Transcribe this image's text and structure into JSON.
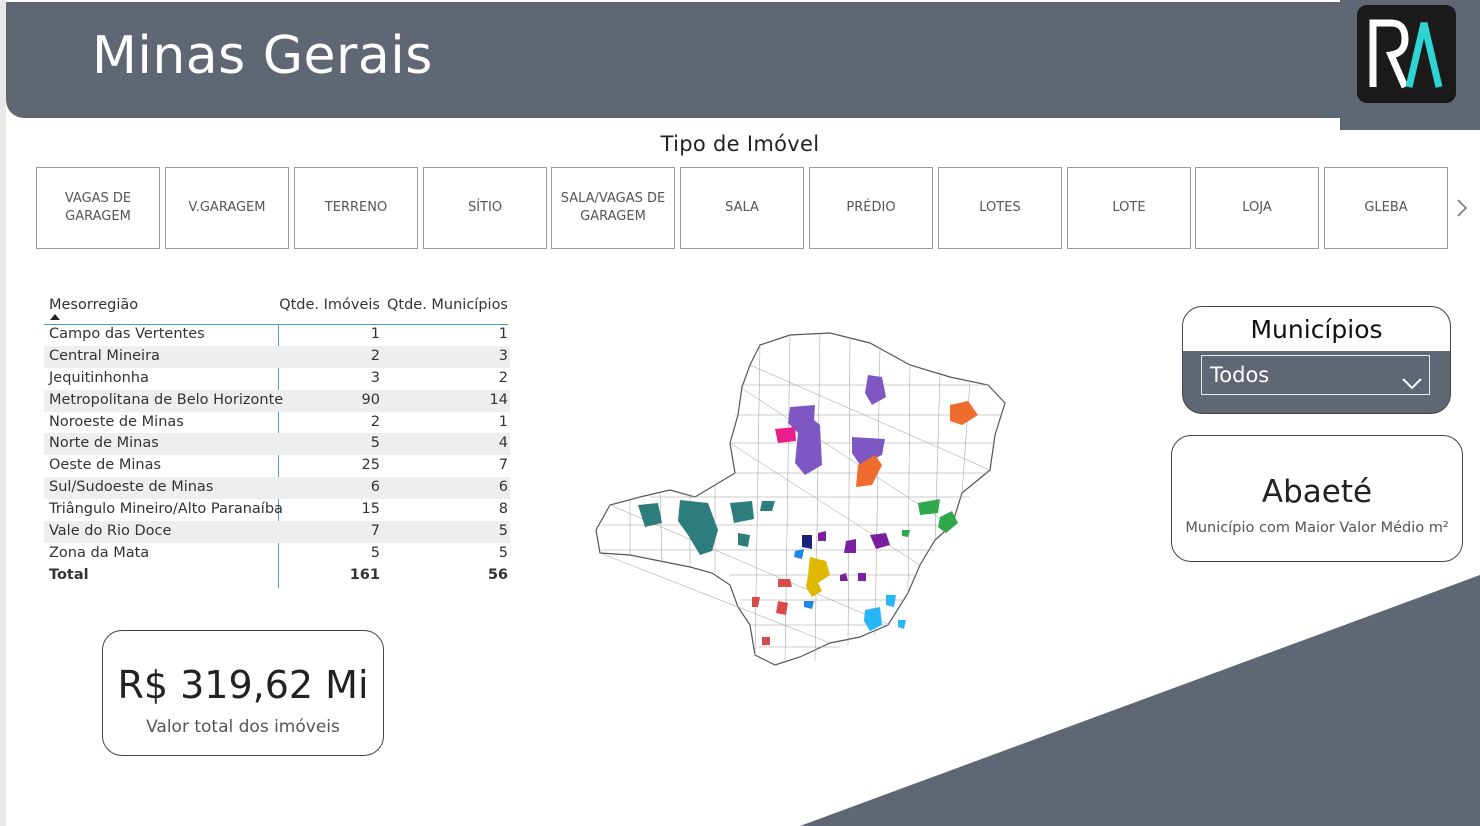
{
  "header": {
    "title": "Minas Gerais",
    "logo_text": "RA"
  },
  "slicer": {
    "title": "Tipo de Imóvel",
    "tiles": [
      "VAGAS DE GARAGEM",
      "V.GARAGEM",
      "TERRENO",
      "SÍTIO",
      "SALA/VAGAS DE GARAGEM",
      "SALA",
      "PRÉDIO",
      "LOTES",
      "LOTE",
      "LOJA",
      "GLEBA"
    ]
  },
  "table": {
    "headers": [
      "Mesorregião",
      "Qtde. Imóveis",
      "Qtde. Municípios"
    ],
    "rows": [
      [
        "Campo das Vertentes",
        "1",
        "1"
      ],
      [
        "Central Mineira",
        "2",
        "3"
      ],
      [
        "Jequitinhonha",
        "3",
        "2"
      ],
      [
        "Metropolitana de Belo Horizonte",
        "90",
        "14"
      ],
      [
        "Noroeste de Minas",
        "2",
        "1"
      ],
      [
        "Norte de Minas",
        "5",
        "4"
      ],
      [
        "Oeste de Minas",
        "25",
        "7"
      ],
      [
        "Sul/Sudoeste de Minas",
        "6",
        "6"
      ],
      [
        "Triângulo Mineiro/Alto Paranaíba",
        "15",
        "8"
      ],
      [
        "Vale do Rio Doce",
        "7",
        "5"
      ],
      [
        "Zona da Mata",
        "5",
        "5"
      ]
    ],
    "total": [
      "Total",
      "161",
      "56"
    ]
  },
  "kpi_total": {
    "value": "R$ 319,62 Mi",
    "label": "Valor total dos imóveis"
  },
  "municipios_filter": {
    "title": "Municípios",
    "selected": "Todos"
  },
  "kpi_top_city": {
    "value": "Abaeté",
    "label": "Município com Maior Valor Médio m²"
  },
  "colors": {
    "header": "#5f6775",
    "accent_teal": "#1f7a7a",
    "region_colors": [
      "#2e7d7d",
      "#7e57c2",
      "#e91e8c",
      "#ef6c2e",
      "#2ea84a",
      "#7b1fa2",
      "#e0b800",
      "#1a237e",
      "#d94b4b",
      "#29b6f6",
      "#1e88e5"
    ]
  }
}
